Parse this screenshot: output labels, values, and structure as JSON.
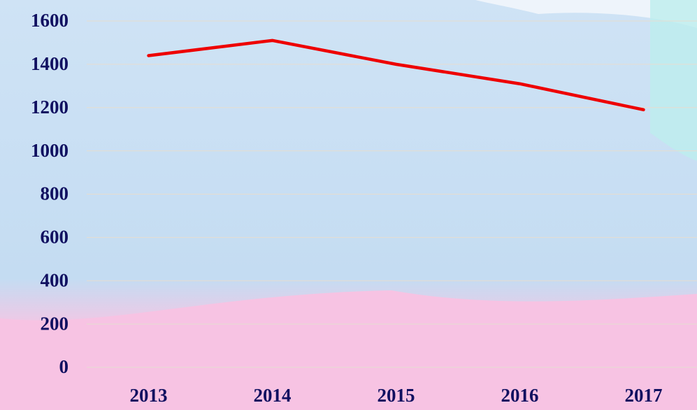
{
  "chart_data": {
    "type": "line",
    "categories": [
      "2013",
      "2014",
      "2015",
      "2016",
      "2017"
    ],
    "series": [
      {
        "color": "#ee0000",
        "values": [
          1440,
          1510,
          1400,
          1310,
          1190
        ]
      }
    ],
    "ylim": [
      0,
      1600
    ],
    "yticks": [
      0,
      200,
      400,
      600,
      800,
      1000,
      1200,
      1400,
      1600
    ],
    "grid": true
  }
}
